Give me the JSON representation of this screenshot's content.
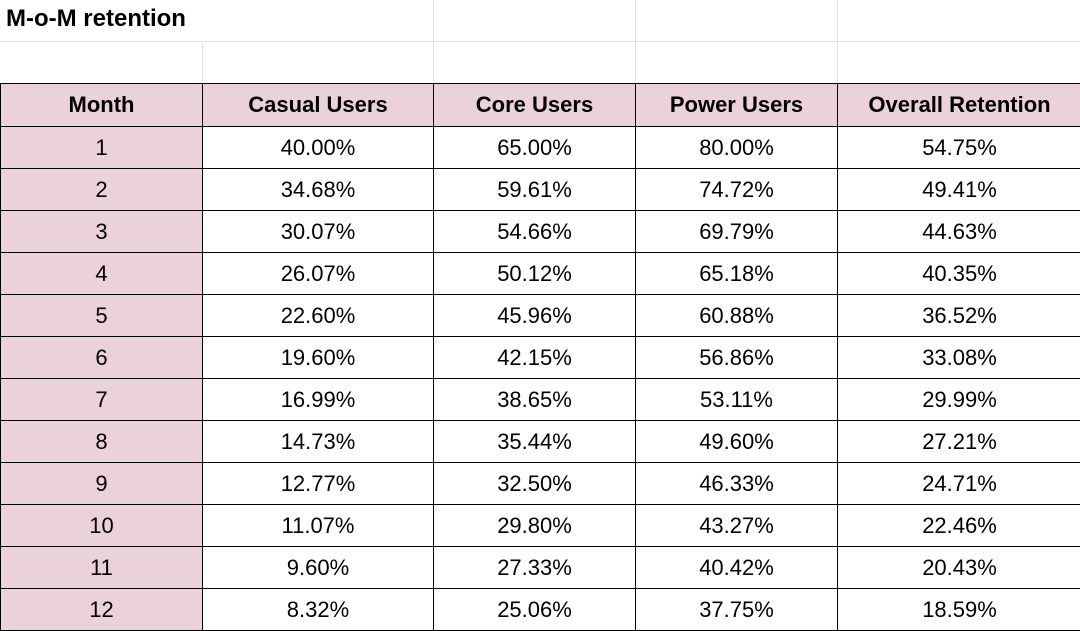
{
  "title": "M-o-M retention",
  "table": {
    "header": [
      "Month",
      "Casual Users",
      "Core Users",
      "Power Users",
      "Overall Retention"
    ],
    "rows": [
      [
        "1",
        "40.00%",
        "65.00%",
        "80.00%",
        "54.75%"
      ],
      [
        "2",
        "34.68%",
        "59.61%",
        "74.72%",
        "49.41%"
      ],
      [
        "3",
        "30.07%",
        "54.66%",
        "69.79%",
        "44.63%"
      ],
      [
        "4",
        "26.07%",
        "50.12%",
        "65.18%",
        "40.35%"
      ],
      [
        "5",
        "22.60%",
        "45.96%",
        "60.88%",
        "36.52%"
      ],
      [
        "6",
        "19.60%",
        "42.15%",
        "56.86%",
        "33.08%"
      ],
      [
        "7",
        "16.99%",
        "38.65%",
        "53.11%",
        "29.99%"
      ],
      [
        "8",
        "14.73%",
        "35.44%",
        "49.60%",
        "27.21%"
      ],
      [
        "9",
        "12.77%",
        "32.50%",
        "46.33%",
        "24.71%"
      ],
      [
        "10",
        "11.07%",
        "29.80%",
        "43.27%",
        "22.46%"
      ],
      [
        "11",
        "9.60%",
        "27.33%",
        "40.42%",
        "20.43%"
      ],
      [
        "12",
        "8.32%",
        "25.06%",
        "37.75%",
        "18.59%"
      ]
    ]
  }
}
